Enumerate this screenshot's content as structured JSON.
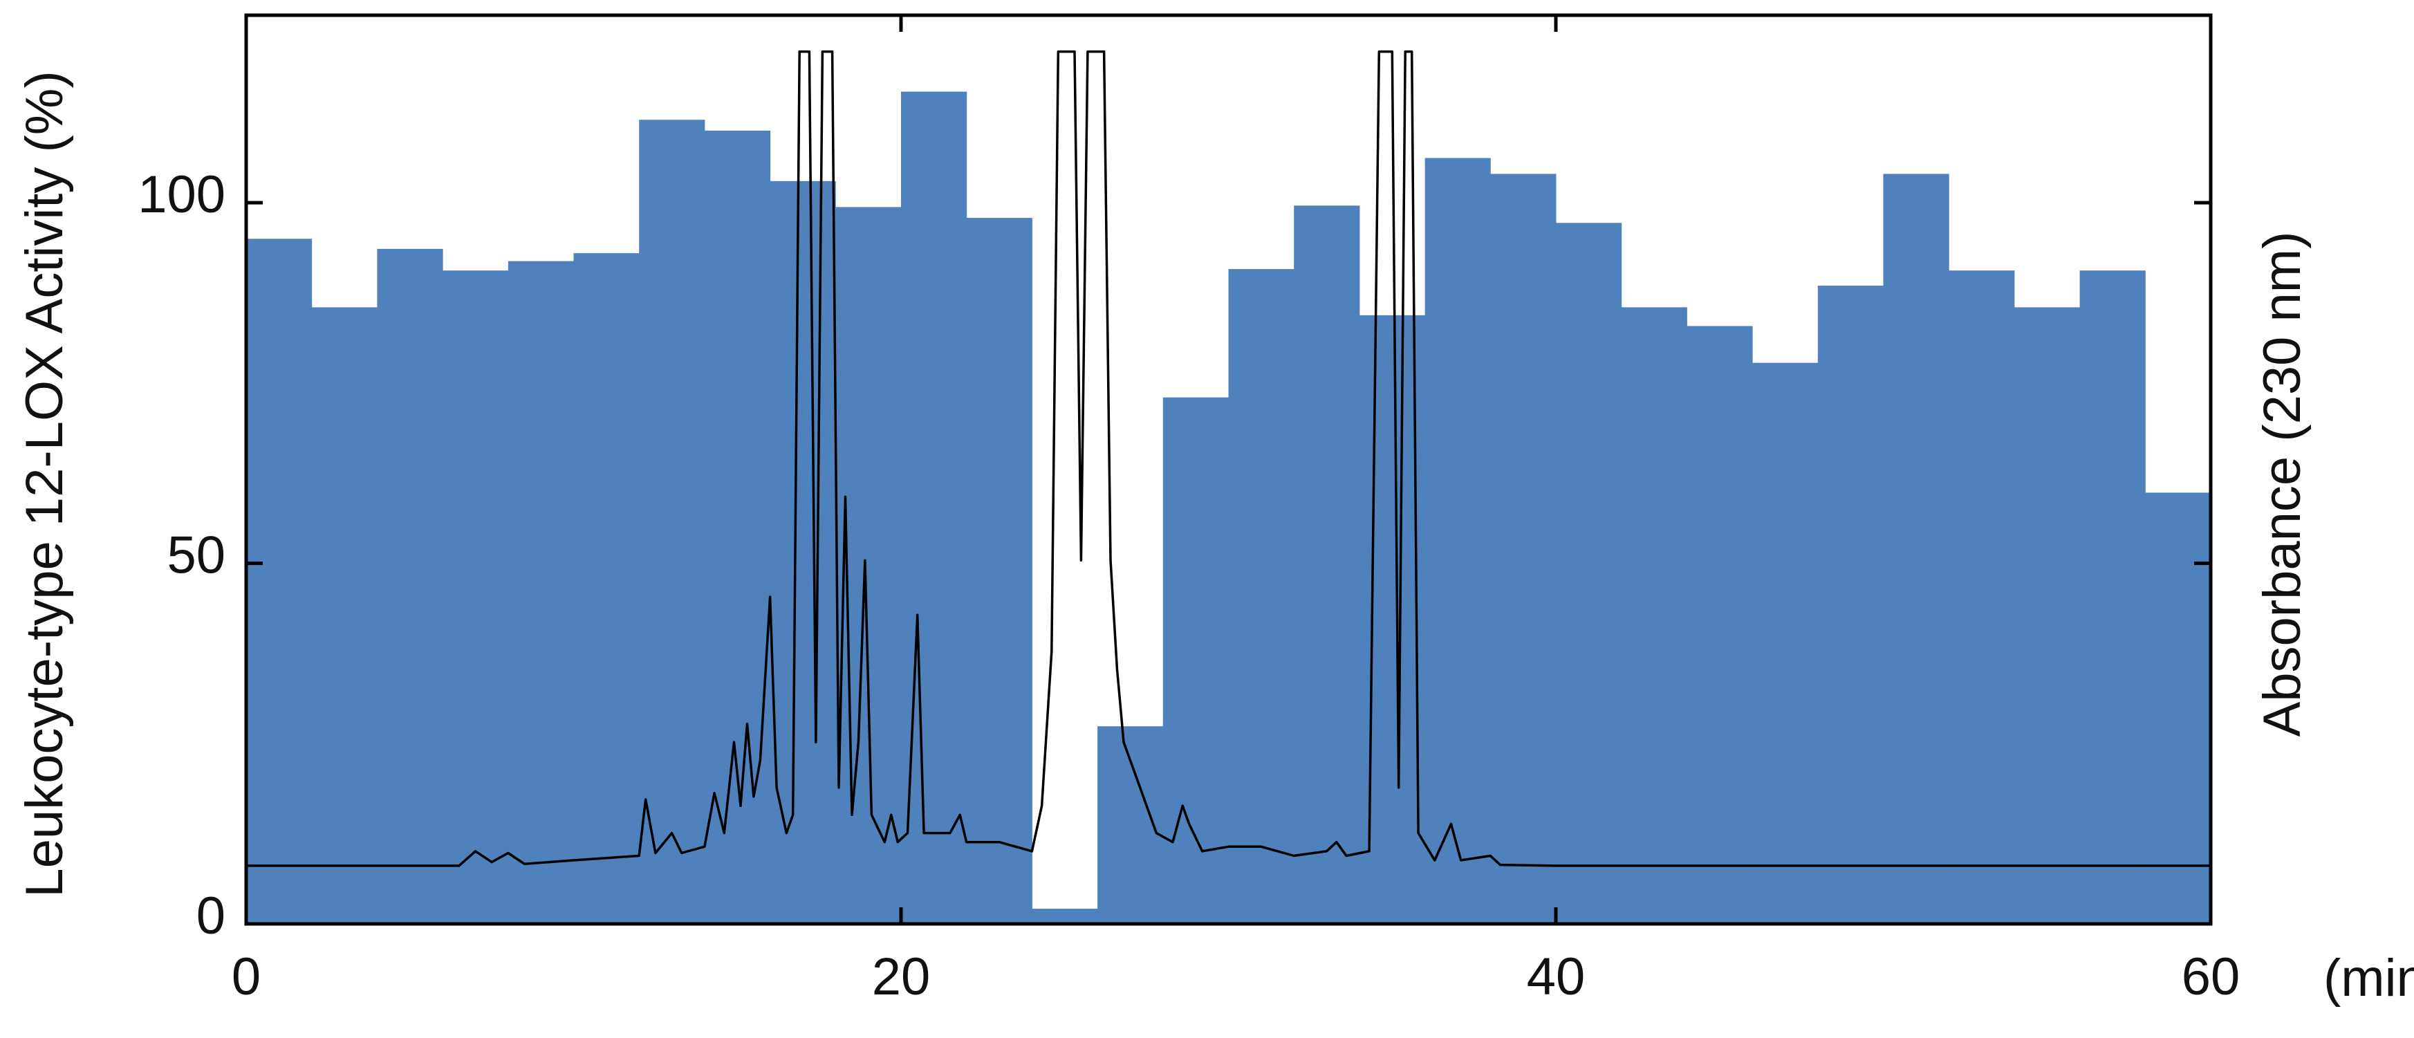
{
  "chart_data": {
    "type": "histogram",
    "ylabel": "Leukocyte-type 12-LOX Activity (%)",
    "y2label": "Absorbance (230 nm)",
    "xlabel": "(min)",
    "bins": [
      0,
      2,
      4,
      6,
      8,
      10,
      12,
      14,
      16,
      18,
      20,
      22,
      24,
      26,
      28,
      30,
      32,
      34,
      36,
      38,
      40,
      42,
      44,
      46,
      48,
      50,
      52,
      54,
      56,
      58,
      60
    ],
    "values": [
      95,
      85.5,
      93.6,
      90.6,
      91.9,
      93,
      111.5,
      110,
      103,
      99.4,
      115.4,
      97.9,
      2.1,
      27.4,
      73,
      90.8,
      99.6,
      84.4,
      106.2,
      104,
      97.2,
      85.5,
      82.9,
      77.8,
      88.5,
      104,
      90.6,
      85.5,
      90.6,
      59.8
    ],
    "color": "#4f81bd",
    "xlim": [
      0,
      60
    ],
    "xticks": [
      0,
      20,
      40,
      60
    ],
    "ylim": [
      0,
      126
    ],
    "yticks": [
      0,
      50,
      100
    ],
    "y2lim": [
      0,
      100
    ],
    "grid": false,
    "line": {
      "axis": "y2",
      "color": "#000000",
      "x": [
        0,
        6.5,
        7,
        7.5,
        8,
        8.5,
        10,
        12,
        12.2,
        12.5,
        13,
        13.3,
        14,
        14.3,
        14.6,
        14.9,
        15.1,
        15.3,
        15.5,
        15.7,
        16,
        16.2,
        16.5,
        16.7,
        16.9,
        17.2,
        17.4,
        17.6,
        17.9,
        18.1,
        18.3,
        18.5,
        18.7,
        18.9,
        19.1,
        19.5,
        19.7,
        19.9,
        20.2,
        20.5,
        20.7,
        21.5,
        21.8,
        22,
        23,
        24,
        24.3,
        24.6,
        24.8,
        25.3,
        25.5,
        25.7,
        26.2,
        26.4,
        26.6,
        26.8,
        27.3,
        27.8,
        28.3,
        28.6,
        28.8,
        29.2,
        30,
        31,
        32,
        33,
        33.3,
        33.6,
        34.3,
        34.6,
        35,
        35.2,
        35.4,
        35.6,
        35.8,
        36.3,
        36.8,
        37.1,
        38,
        38.3,
        40,
        60
      ],
      "values": [
        6.4,
        6.4,
        8,
        6.8,
        7.8,
        6.6,
        7,
        7.5,
        13.7,
        7.8,
        10,
        7.8,
        8.5,
        14.4,
        10,
        20,
        13,
        22,
        14,
        18,
        36,
        15,
        10,
        12,
        96,
        96,
        20,
        96,
        96,
        15,
        47,
        12,
        20,
        40,
        12,
        9,
        12,
        9,
        10,
        34,
        10,
        10,
        12,
        9,
        9,
        8,
        13,
        30,
        96,
        96,
        40,
        96,
        96,
        40,
        28,
        20,
        15,
        10,
        9,
        13,
        11,
        8,
        8.5,
        8.5,
        7.5,
        8,
        9,
        7.5,
        8,
        96,
        96,
        15,
        96,
        96,
        10,
        7,
        11,
        7,
        7.5,
        6.5,
        6.4,
        6.4
      ]
    }
  }
}
